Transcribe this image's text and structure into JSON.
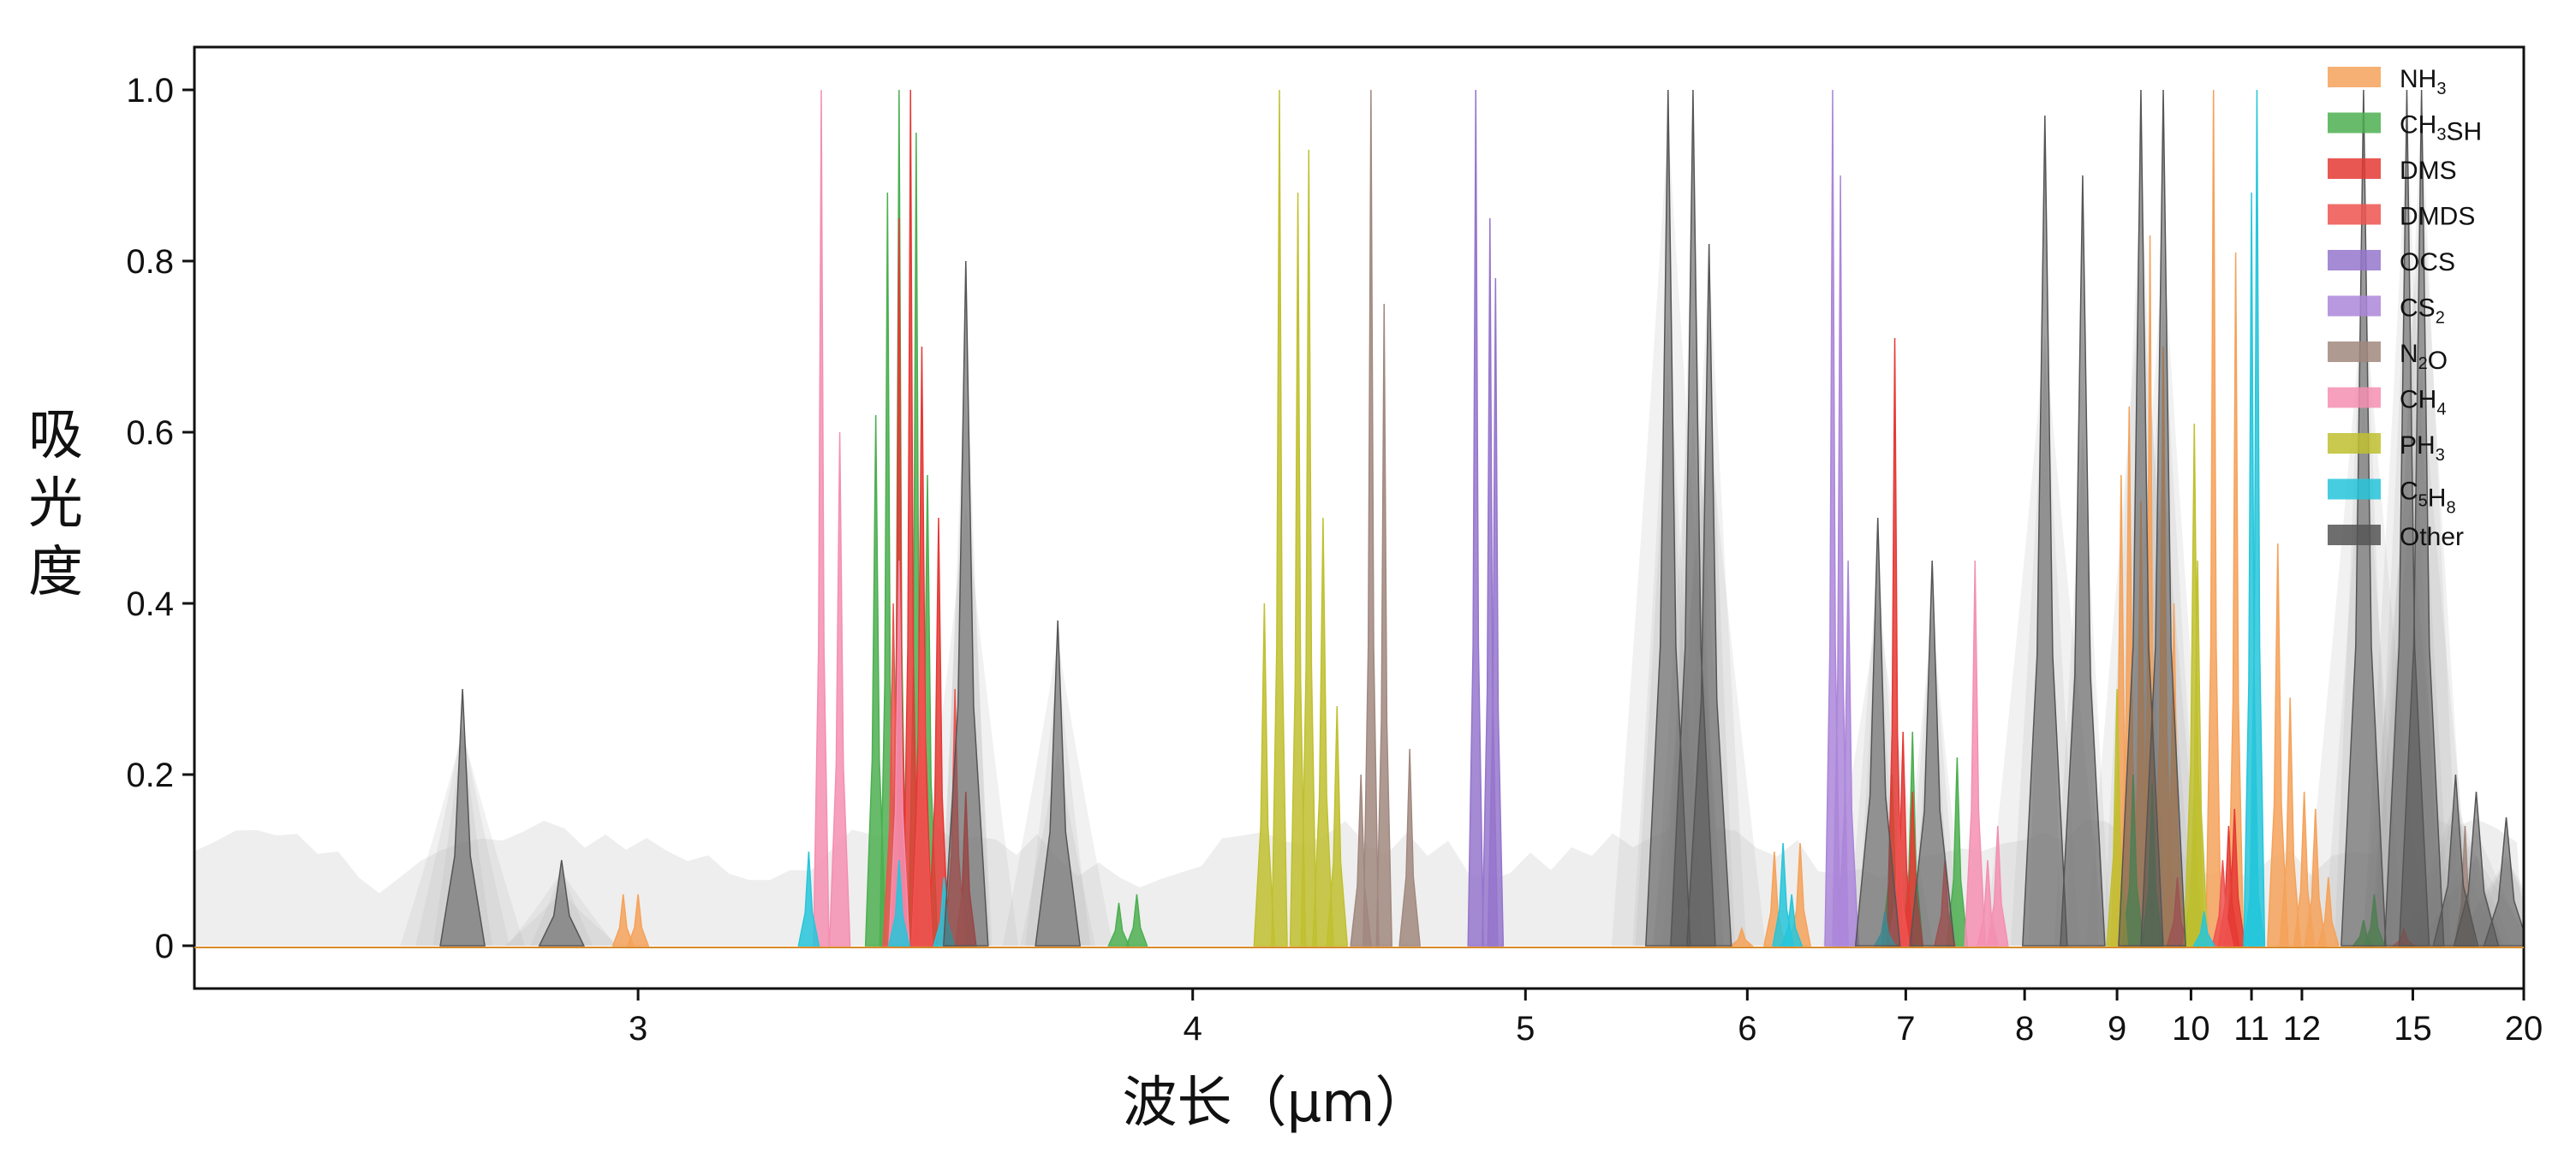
{
  "chart_data": {
    "type": "area",
    "xlabel": "波长（μm）",
    "ylabel": "吸光度",
    "xscale": "reciprocal",
    "xlim": [
      2.5,
      20
    ],
    "ylim": [
      -0.05,
      1.05
    ],
    "grid": false,
    "legend_position": "top-right",
    "x_ticks": [
      3,
      4,
      5,
      6,
      7,
      8,
      9,
      10,
      11,
      12,
      15,
      20
    ],
    "x_tick_labels": [
      "3",
      "4",
      "5",
      "6",
      "7",
      "8",
      "9",
      "10",
      "11",
      "12",
      "15",
      "20"
    ],
    "y_ticks": [
      0,
      0.2,
      0.4,
      0.6,
      0.8,
      1.0
    ],
    "y_tick_labels": [
      "0",
      "0.2",
      "0.4",
      "0.6",
      "0.8",
      "1.0"
    ],
    "series": [
      {
        "name": "NH3",
        "legend_label": {
          "base": "NH",
          "sub": "3",
          "tail": ""
        },
        "color": "#f5a25a",
        "points": [
          [
            2.98,
            0.06
          ],
          [
            3.0,
            0.06
          ],
          [
            5.97,
            0.02
          ],
          [
            6.15,
            0.11
          ],
          [
            6.3,
            0.12
          ],
          [
            9.05,
            0.55
          ],
          [
            9.15,
            0.63
          ],
          [
            9.3,
            0.52
          ],
          [
            9.42,
            0.83
          ],
          [
            9.6,
            0.7
          ],
          [
            9.75,
            0.4
          ],
          [
            10.35,
            1.0
          ],
          [
            10.72,
            0.81
          ],
          [
            11.5,
            0.47
          ],
          [
            11.75,
            0.29
          ],
          [
            12.05,
            0.18
          ],
          [
            12.3,
            0.16
          ],
          [
            12.6,
            0.08
          ]
        ]
      },
      {
        "name": "CH3SH",
        "legend_label": {
          "base": "CH",
          "sub": "3",
          "tail": "SH"
        },
        "color": "#4caf50",
        "points": [
          [
            3.36,
            0.62
          ],
          [
            3.38,
            0.88
          ],
          [
            3.4,
            1.0
          ],
          [
            3.43,
            0.95
          ],
          [
            3.45,
            0.55
          ],
          [
            3.83,
            0.05
          ],
          [
            3.87,
            0.06
          ],
          [
            6.9,
            0.2
          ],
          [
            7.05,
            0.25
          ],
          [
            7.4,
            0.22
          ],
          [
            9.2,
            0.2
          ],
          [
            9.45,
            0.19
          ],
          [
            10.05,
            0.18
          ],
          [
            13.5,
            0.03
          ],
          [
            13.8,
            0.06
          ]
        ]
      },
      {
        "name": "DMS",
        "legend_label": {
          "base": "DMS",
          "sub": "",
          "tail": ""
        },
        "color": "#e53935",
        "points": [
          [
            3.4,
            0.85
          ],
          [
            3.42,
            1.0
          ],
          [
            3.44,
            0.7
          ],
          [
            3.47,
            0.5
          ],
          [
            3.52,
            0.18
          ],
          [
            6.92,
            0.71
          ],
          [
            6.98,
            0.25
          ],
          [
            7.05,
            0.18
          ],
          [
            10.6,
            0.14
          ],
          [
            10.7,
            0.16
          ]
        ]
      },
      {
        "name": "DMDS",
        "legend_label": {
          "base": "DMDS",
          "sub": "",
          "tail": ""
        },
        "color": "#ef5350",
        "points": [
          [
            3.39,
            0.4
          ],
          [
            3.44,
            0.5
          ],
          [
            3.5,
            0.3
          ],
          [
            6.95,
            0.15
          ],
          [
            7.3,
            0.1
          ],
          [
            9.8,
            0.08
          ],
          [
            10.5,
            0.1
          ],
          [
            14.7,
            0.02
          ]
        ]
      },
      {
        "name": "OCS",
        "legend_label": {
          "base": "OCS",
          "sub": "",
          "tail": ""
        },
        "color": "#9575cd",
        "points": [
          [
            4.82,
            1.0
          ],
          [
            4.87,
            0.85
          ],
          [
            4.89,
            0.78
          ]
        ]
      },
      {
        "name": "CS2",
        "legend_label": {
          "base": "CS",
          "sub": "2",
          "tail": ""
        },
        "color": "#ab86d9",
        "points": [
          [
            6.5,
            1.0
          ],
          [
            6.55,
            0.9
          ],
          [
            6.6,
            0.45
          ]
        ]
      },
      {
        "name": "N2O",
        "legend_label": {
          "base": "N",
          "sub": "2",
          "tail": "O"
        },
        "color": "#a1887f",
        "points": [
          [
            4.48,
            1.0
          ],
          [
            4.52,
            0.75
          ],
          [
            4.45,
            0.2
          ],
          [
            4.6,
            0.23
          ],
          [
            17.0,
            0.14
          ]
        ]
      },
      {
        "name": "CH4",
        "legend_label": {
          "base": "CH",
          "sub": "4",
          "tail": ""
        },
        "color": "#f48fb1",
        "points": [
          [
            3.27,
            1.0
          ],
          [
            3.3,
            0.6
          ],
          [
            3.4,
            0.45
          ],
          [
            7.55,
            0.45
          ],
          [
            7.75,
            0.14
          ],
          [
            7.66,
            0.1
          ]
        ]
      },
      {
        "name": "PH3",
        "legend_label": {
          "base": "PH",
          "sub": "3",
          "tail": ""
        },
        "color": "#c0c030",
        "points": [
          [
            4.18,
            0.4
          ],
          [
            4.22,
            1.0
          ],
          [
            4.27,
            0.88
          ],
          [
            4.3,
            0.93
          ],
          [
            4.34,
            0.5
          ],
          [
            4.38,
            0.28
          ],
          [
            9.0,
            0.3
          ],
          [
            10.05,
            0.61
          ],
          [
            10.1,
            0.45
          ]
        ]
      },
      {
        "name": "C5H8",
        "legend_label": {
          "base": "C",
          "sub": "5",
          "tail": "H",
          "sub2": "8"
        },
        "color": "#26c6da",
        "points": [
          [
            3.25,
            0.11
          ],
          [
            3.4,
            0.1
          ],
          [
            3.48,
            0.08
          ],
          [
            6.2,
            0.12
          ],
          [
            6.25,
            0.06
          ],
          [
            11.0,
            0.88
          ],
          [
            11.1,
            1.0
          ],
          [
            11.05,
            0.18
          ],
          [
            6.85,
            0.04
          ],
          [
            10.2,
            0.04
          ]
        ]
      },
      {
        "name": "Other",
        "legend_label": {
          "base": "Other",
          "sub": "",
          "tail": ""
        },
        "color": "#555555",
        "points": [
          [
            2.78,
            0.3
          ],
          [
            2.9,
            0.1
          ],
          [
            3.52,
            0.8
          ],
          [
            3.7,
            0.38
          ],
          [
            5.6,
            1.0
          ],
          [
            5.72,
            1.0
          ],
          [
            5.8,
            0.82
          ],
          [
            6.8,
            0.5
          ],
          [
            7.2,
            0.45
          ],
          [
            8.2,
            0.97
          ],
          [
            8.6,
            0.9
          ],
          [
            9.3,
            1.0
          ],
          [
            9.6,
            1.0
          ],
          [
            13.5,
            1.0
          ],
          [
            14.8,
            1.0
          ],
          [
            15.3,
            1.0
          ],
          [
            16.6,
            0.2
          ],
          [
            17.5,
            0.18
          ],
          [
            19.0,
            0.15
          ]
        ]
      }
    ]
  }
}
